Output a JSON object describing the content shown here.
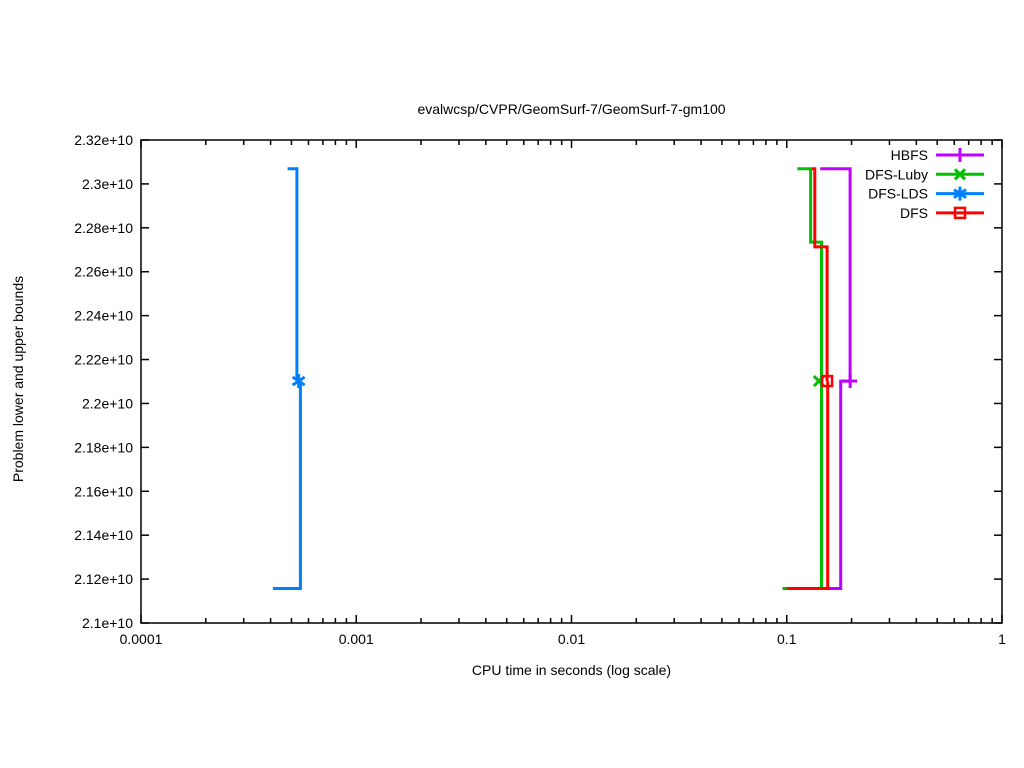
{
  "title": "evalwcsp/CVPR/GeomSurf-7/GeomSurf-7-gm100",
  "xlabel": "CPU time in seconds (log scale)",
  "ylabel": "Problem lower and upper bounds",
  "chart_data": {
    "type": "line",
    "subtype": "step-bounds-convergence",
    "x_scale": "log",
    "x_range": [
      0.0001,
      1
    ],
    "y_range": [
      21000000000,
      23200000000
    ],
    "x_ticks": [
      "0.0001",
      "0.001",
      "0.01",
      "0.1",
      "1"
    ],
    "y_ticks": [
      "2.1e+10",
      "2.12e+10",
      "2.14e+10",
      "2.16e+10",
      "2.18e+10",
      "2.2e+10",
      "2.22e+10",
      "2.24e+10",
      "2.26e+10",
      "2.28e+10",
      "2.3e+10",
      "2.32e+10"
    ],
    "grid": false,
    "legend": {
      "position": "top-right",
      "entries": [
        "HBFS",
        "DFS-Luby",
        "DFS-LDS",
        "DFS"
      ]
    },
    "series": [
      {
        "name": "HBFS",
        "color": "#c000ff",
        "marker": "plus",
        "upper_bound_steps": [
          [
            0.143,
            23069000000
          ],
          [
            0.197,
            23069000000
          ],
          [
            0.197,
            22102000000
          ]
        ],
        "lower_bound_steps": [
          [
            0.155,
            21157000000
          ],
          [
            0.178,
            21157000000
          ],
          [
            0.178,
            22102000000
          ],
          [
            0.197,
            22102000000
          ]
        ],
        "optimum_point": [
          0.197,
          22102000000
        ]
      },
      {
        "name": "DFS-Luby",
        "color": "#00c000",
        "marker": "cross",
        "upper_bound_steps": [
          [
            0.112,
            23069000000
          ],
          [
            0.129,
            23069000000
          ],
          [
            0.129,
            22735000000
          ],
          [
            0.145,
            22735000000
          ],
          [
            0.145,
            22102000000
          ]
        ],
        "lower_bound_steps": [
          [
            0.0955,
            21157000000
          ],
          [
            0.145,
            21157000000
          ],
          [
            0.145,
            22102000000
          ]
        ],
        "optimum_point": [
          0.141,
          22102000000
        ]
      },
      {
        "name": "DFS-LDS",
        "color": "#0080ff",
        "marker": "asterisk",
        "upper_bound_steps": [
          [
            0.00048,
            23069000000
          ],
          [
            0.00053,
            23069000000
          ],
          [
            0.00053,
            22102000000
          ]
        ],
        "lower_bound_steps": [
          [
            0.00041,
            21157000000
          ],
          [
            0.00055,
            21157000000
          ],
          [
            0.00055,
            22102000000
          ]
        ],
        "optimum_point": [
          0.00054,
          22102000000
        ]
      },
      {
        "name": "DFS",
        "color": "#ff0000",
        "marker": "square-open",
        "upper_bound_steps": [
          [
            0.131,
            23069000000
          ],
          [
            0.135,
            23069000000
          ],
          [
            0.135,
            22713000000
          ],
          [
            0.154,
            22713000000
          ],
          [
            0.154,
            22102000000
          ]
        ],
        "lower_bound_steps": [
          [
            0.1,
            21157000000
          ],
          [
            0.155,
            21157000000
          ],
          [
            0.155,
            22102000000
          ]
        ],
        "optimum_point": [
          0.154,
          22102000000
        ]
      }
    ]
  }
}
